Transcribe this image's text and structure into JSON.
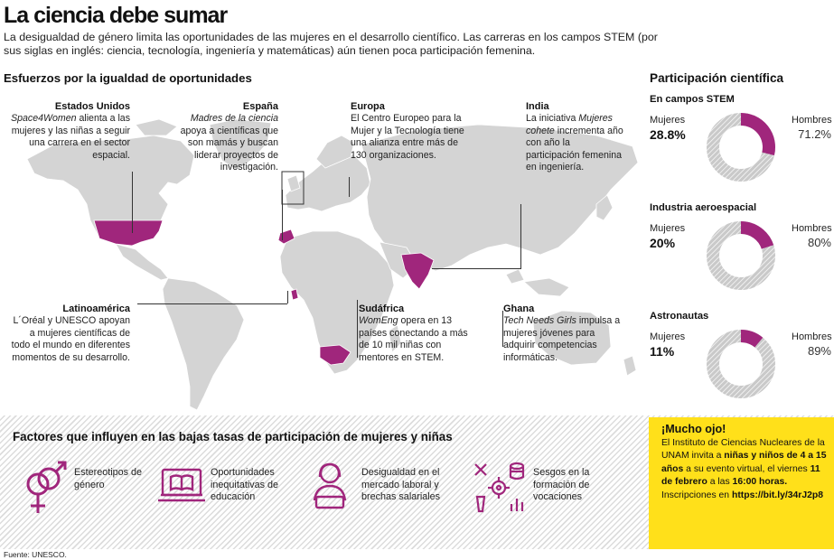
{
  "header": {
    "title": "La ciencia debe sumar",
    "intro": "La desigualdad de género limita las oportunidades de las mujeres en el desarrollo científico. Las carreras en los campos STEM (por sus siglas en inglés: ciencia, tecnología, ingeniería y matemáticas) aún tienen poca participación femenina."
  },
  "map": {
    "heading": "Esfuerzos por la igualdad de oportunidades",
    "notes": {
      "usa": {
        "title": "Estados Unidos",
        "em": "Space4Women",
        "text": " alienta a las mujeres y las niñas a seguir una  carrera en el sector espacial."
      },
      "spain": {
        "title": "España",
        "em": "Madres de la ciencia",
        "text": " apoya a científicas que son mamás y buscan liderar proyectos de investigación."
      },
      "europe": {
        "title": "Europa",
        "text": "El Centro Europeo para la Mujer y la Tecnología tiene una alianza entre más de 130 organizaciones."
      },
      "india": {
        "title": "India",
        "pre": "La iniciativa ",
        "em": "Mujeres cohete",
        "text": " incrementa año con año la participación femenina en ingeniería."
      },
      "latam": {
        "title": "Latinoamérica",
        "text": "L´Oréal y UNESCO apoyan a mujeres científicas de todo el mundo en diferentes momentos de su desarrollo."
      },
      "southafrica": {
        "title": "Sudáfrica",
        "em": "WomEng",
        "text": " opera en 13 países conectando a más de 10 mil niñas con mentores en STEM."
      },
      "ghana": {
        "title": "Ghana",
        "em": "Tech Needs Girls",
        "text": " impulsa a mujeres jóvenes para adquirir competencias informáticas."
      }
    }
  },
  "participation": {
    "heading": "Participación científica",
    "women_label": "Mujeres",
    "men_label": "Hombres"
  },
  "chart_data": {
    "type": "pie",
    "title": "Participación científica",
    "series_names": [
      "Mujeres",
      "Hombres"
    ],
    "colors": {
      "women": "#a0267c",
      "men": "#d8d8d8"
    },
    "charts": [
      {
        "category": "En campos STEM",
        "women": 28.8,
        "men": 71.2,
        "women_label": "28.8%",
        "men_label": "71.2%"
      },
      {
        "category": "Industria aeroespacial",
        "women": 20,
        "men": 80,
        "women_label": "20%",
        "men_label": "80%"
      },
      {
        "category": "Astronautas",
        "women": 11,
        "men": 89,
        "women_label": "11%",
        "men_label": "89%"
      }
    ]
  },
  "factors": {
    "heading": "Factores que influyen en las bajas tasas de participación de mujeres y niñas",
    "items": [
      {
        "label": "Estereotipos de género",
        "icon": "gender-symbols-icon"
      },
      {
        "label": "Oportunidades inequitativas de educación",
        "icon": "laptop-book-icon"
      },
      {
        "label": "Desigualdad en el mercado laboral y brechas salariales",
        "icon": "woman-worker-icon"
      },
      {
        "label": "Sesgos en la formación de vocaciones",
        "icon": "science-tools-icon"
      }
    ]
  },
  "callout": {
    "title": "¡Mucho ojo!",
    "t1": "El Instituto de Ciencias Nucleares de la UNAM invita a ",
    "b1": "niñas y niños de 4 a 15 años",
    "t2": " a su evento virtual,  el viernes ",
    "b2": "11 de febrero",
    "t3": " a las ",
    "b3": "16:00 horas.",
    "t4": " Inscripciones en ",
    "b4": "https://bit.ly/34rJ2p8"
  },
  "source": "Fuente: UNESCO.",
  "colors": {
    "accent": "#a0267c",
    "map_gray": "#d4d4d4",
    "yellow": "#ffe01a"
  }
}
